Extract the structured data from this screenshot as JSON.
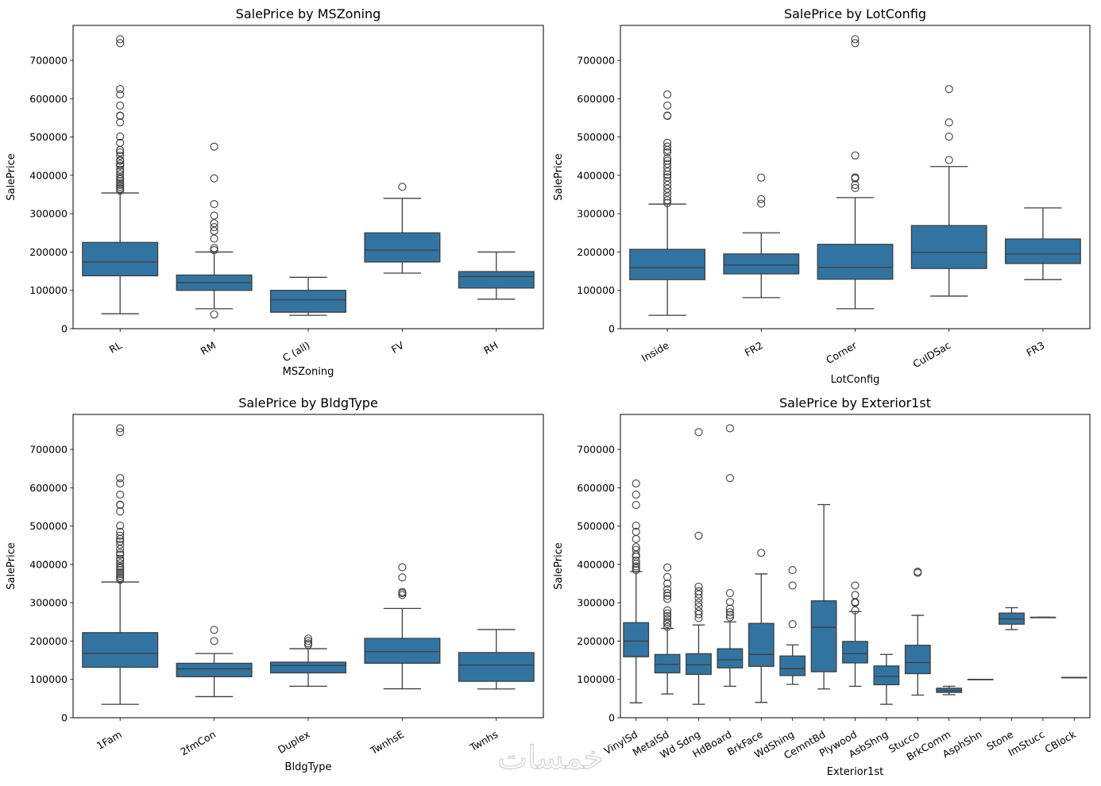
{
  "figure": {
    "watermark": "خمسات"
  },
  "chart_data": [
    {
      "type": "box",
      "title": "SalePrice by MSZoning",
      "xlabel": "MSZoning",
      "ylabel": "SalePrice",
      "ylim": [
        0,
        790000
      ],
      "yticks": [
        0,
        100000,
        200000,
        300000,
        400000,
        500000,
        600000,
        700000
      ],
      "grid": false,
      "categories": [
        "RL",
        "RM",
        "C (all)",
        "FV",
        "RH"
      ],
      "boxes": [
        {
          "whislo": 39000,
          "q1": 138000,
          "med": 174000,
          "q3": 225000,
          "whishi": 354000,
          "fliers": [
            755000,
            745000,
            625000,
            611000,
            582000,
            556000,
            555000,
            538000,
            501000,
            485000,
            466000,
            460000,
            451000,
            440000,
            438000,
            430000,
            425000,
            415000,
            410000,
            403000,
            395000,
            390000,
            385000,
            380000,
            375000,
            370000,
            365000,
            360000
          ]
        },
        {
          "whislo": 52000,
          "q1": 100000,
          "med": 120000,
          "q3": 140000,
          "whishi": 200000,
          "fliers": [
            475000,
            392000,
            325000,
            295000,
            275000,
            265000,
            255000,
            235000,
            210000,
            205000,
            37000
          ]
        },
        {
          "whislo": 35000,
          "q1": 43000,
          "med": 75000,
          "q3": 100000,
          "whishi": 134000,
          "fliers": []
        },
        {
          "whislo": 145000,
          "q1": 174000,
          "med": 205000,
          "q3": 250000,
          "whishi": 340000,
          "fliers": [
            370000
          ]
        },
        {
          "whislo": 77000,
          "q1": 106000,
          "med": 136000,
          "q3": 149000,
          "whishi": 200000,
          "fliers": []
        }
      ]
    },
    {
      "type": "box",
      "title": "SalePrice by LotConfig",
      "xlabel": "LotConfig",
      "ylabel": "SalePrice",
      "ylim": [
        0,
        790000
      ],
      "yticks": [
        0,
        100000,
        200000,
        300000,
        400000,
        500000,
        600000,
        700000
      ],
      "grid": false,
      "categories": [
        "Inside",
        "FR2",
        "Corner",
        "CulDSac",
        "FR3"
      ],
      "boxes": [
        {
          "whislo": 35000,
          "q1": 128000,
          "med": 159000,
          "q3": 207000,
          "whishi": 325000,
          "fliers": [
            611000,
            582000,
            556000,
            555000,
            485000,
            475000,
            466000,
            460000,
            445000,
            438000,
            430000,
            420000,
            410000,
            402000,
            395000,
            385000,
            375000,
            365000,
            355000,
            345000,
            335000,
            328000
          ]
        },
        {
          "whislo": 81000,
          "q1": 143000,
          "med": 166000,
          "q3": 195000,
          "whishi": 250000,
          "fliers": [
            394000,
            338000,
            326000
          ]
        },
        {
          "whislo": 52000,
          "q1": 129000,
          "med": 160000,
          "q3": 220000,
          "whishi": 342000,
          "fliers": [
            755000,
            745000,
            452000,
            395000,
            392000,
            375000,
            367000
          ]
        },
        {
          "whislo": 85000,
          "q1": 157000,
          "med": 199000,
          "q3": 269000,
          "whishi": 423000,
          "fliers": [
            625000,
            538000,
            501000,
            440000
          ]
        },
        {
          "whislo": 128000,
          "q1": 170000,
          "med": 195000,
          "q3": 234000,
          "whishi": 315000,
          "fliers": []
        }
      ]
    },
    {
      "type": "box",
      "title": "SalePrice by BldgType",
      "xlabel": "BldgType",
      "ylabel": "SalePrice",
      "ylim": [
        0,
        790000
      ],
      "yticks": [
        0,
        100000,
        200000,
        300000,
        400000,
        500000,
        600000,
        700000
      ],
      "grid": false,
      "categories": [
        "1Fam",
        "2fmCon",
        "Duplex",
        "TwnhsE",
        "Twnhs"
      ],
      "boxes": [
        {
          "whislo": 34900,
          "q1": 131500,
          "med": 167900,
          "q3": 222000,
          "whishi": 354000,
          "fliers": [
            755000,
            745000,
            625000,
            611000,
            582000,
            556000,
            555000,
            538000,
            501000,
            485000,
            475000,
            466000,
            460000,
            451000,
            440000,
            430000,
            425000,
            415000,
            410000,
            403000,
            395000,
            390000,
            385000,
            380000,
            375000,
            370000,
            365000,
            360000
          ]
        },
        {
          "whislo": 55000,
          "q1": 107000,
          "med": 127500,
          "q3": 142000,
          "whishi": 167500,
          "fliers": [
            228950,
            200000
          ]
        },
        {
          "whislo": 82000,
          "q1": 117000,
          "med": 135980,
          "q3": 145000,
          "whishi": 180000,
          "fliers": [
            206300,
            200000,
            194000,
            190000
          ]
        },
        {
          "whislo": 75500,
          "q1": 142000,
          "med": 172200,
          "q3": 207000,
          "whishi": 285000,
          "fliers": [
            392500,
            366000,
            328000,
            325000,
            320000
          ]
        },
        {
          "whislo": 75000,
          "q1": 95000,
          "med": 137500,
          "q3": 170000,
          "whishi": 230000,
          "fliers": []
        }
      ]
    },
    {
      "type": "box",
      "title": "SalePrice by Exterior1st",
      "xlabel": "Exterior1st",
      "ylabel": "SalePrice",
      "ylim": [
        0,
        790000
      ],
      "yticks": [
        0,
        100000,
        200000,
        300000,
        400000,
        500000,
        600000,
        700000
      ],
      "grid": false,
      "categories": [
        "VinylSd",
        "MetalSd",
        "Wd Sdng",
        "HdBoard",
        "BrkFace",
        "WdShing",
        "CemntBd",
        "Plywood",
        "AsbShng",
        "Stucco",
        "BrkComm",
        "AsphShn",
        "Stone",
        "ImStucc",
        "CBlock"
      ],
      "boxes": [
        {
          "whislo": 39000,
          "q1": 159000,
          "med": 200000,
          "q3": 248000,
          "whishi": 381000,
          "fliers": [
            611000,
            582000,
            555000,
            501000,
            485000,
            466000,
            445000,
            438000,
            425000,
            420000,
            410000,
            402000,
            395000,
            390000,
            385000
          ]
        },
        {
          "whislo": 62000,
          "q1": 117000,
          "med": 139000,
          "q3": 165000,
          "whishi": 233000,
          "fliers": [
            392000,
            367000,
            350000,
            335000,
            325000,
            318000,
            310000,
            280000,
            272000,
            265000,
            258000,
            250000,
            245000,
            237000
          ]
        },
        {
          "whislo": 35000,
          "q1": 113000,
          "med": 138000,
          "q3": 167000,
          "whishi": 242000,
          "fliers": [
            745000,
            475000,
            342000,
            330000,
            322000,
            312000,
            300000,
            290000,
            278000,
            270000,
            260000
          ]
        },
        {
          "whislo": 82000,
          "q1": 130000,
          "med": 151000,
          "q3": 180000,
          "whishi": 250000,
          "fliers": [
            755000,
            625000,
            325000,
            302000,
            285000,
            275000,
            268000,
            262000
          ]
        },
        {
          "whislo": 40000,
          "q1": 134000,
          "med": 165000,
          "q3": 246000,
          "whishi": 375000,
          "fliers": [
            430000
          ]
        },
        {
          "whislo": 87000,
          "q1": 110000,
          "med": 128000,
          "q3": 161000,
          "whishi": 190000,
          "fliers": [
            385000,
            345000,
            244000
          ]
        },
        {
          "whislo": 75000,
          "q1": 120000,
          "med": 236000,
          "q3": 305000,
          "whishi": 556000,
          "fliers": []
        },
        {
          "whislo": 82000,
          "q1": 143000,
          "med": 167000,
          "q3": 199000,
          "whishi": 277000,
          "fliers": [
            345000,
            320000,
            302000,
            300000,
            280000
          ]
        },
        {
          "whislo": 35000,
          "q1": 86000,
          "med": 108000,
          "q3": 135000,
          "whishi": 165000,
          "fliers": []
        },
        {
          "whislo": 59000,
          "q1": 115000,
          "med": 144000,
          "q3": 189000,
          "whishi": 267000,
          "fliers": [
            381000,
            378000
          ]
        },
        {
          "whislo": 60000,
          "q1": 66000,
          "med": 71000,
          "q3": 77000,
          "whishi": 82000,
          "fliers": []
        },
        {
          "whislo": 100000,
          "q1": 100000,
          "med": 100000,
          "q3": 100000,
          "whishi": 100000,
          "fliers": []
        },
        {
          "whislo": 230000,
          "q1": 244000,
          "med": 258000,
          "q3": 273000,
          "whishi": 287000,
          "fliers": []
        },
        {
          "whislo": 262000,
          "q1": 262000,
          "med": 262000,
          "q3": 262000,
          "whishi": 262000,
          "fliers": []
        },
        {
          "whislo": 105000,
          "q1": 105000,
          "med": 105000,
          "q3": 105000,
          "whishi": 105000,
          "fliers": []
        }
      ]
    }
  ],
  "style": {
    "box_fill": "#3274a1",
    "line_color": "#3f3f3f",
    "axis_color": "#000000"
  }
}
